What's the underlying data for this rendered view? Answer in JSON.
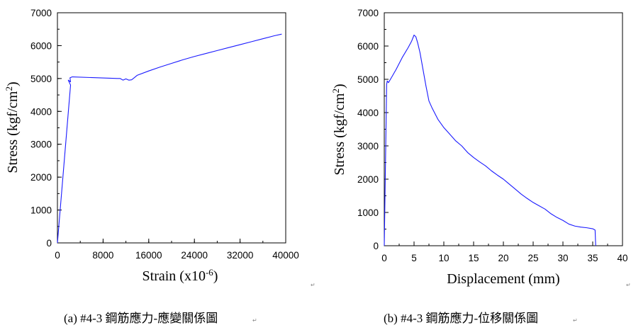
{
  "chart_data": [
    {
      "type": "line",
      "xlabel": "Strain (x10",
      "xlabel_exp": "-6",
      "xlabel_end": ")",
      "ylabel": "Stress (kgf/cm",
      "ylabel_exp": "2",
      "ylabel_end": ")",
      "xlim": [
        0,
        40000
      ],
      "ylim": [
        0,
        7000
      ],
      "xticks": [
        0,
        8000,
        16000,
        24000,
        32000,
        40000
      ],
      "yticks": [
        0,
        1000,
        2000,
        3000,
        4000,
        5000,
        6000,
        7000
      ],
      "xminor_step": 4000,
      "yminor_step": 500,
      "grid": false,
      "color": "#1a1aff",
      "caption": "(a) #4-3 鋼筋應力-應變關係圖",
      "series": [
        {
          "points": [
            [
              0,
              0
            ],
            [
              2300,
              4800
            ],
            [
              1900,
              4950
            ],
            [
              2300,
              4900
            ],
            [
              2200,
              5020
            ],
            [
              2600,
              5050
            ],
            [
              10500,
              5000
            ],
            [
              11000,
              5000
            ],
            [
              11500,
              4950
            ],
            [
              12000,
              4990
            ],
            [
              12500,
              4950
            ],
            [
              13000,
              4960
            ],
            [
              13300,
              5000
            ],
            [
              14000,
              5100
            ],
            [
              16000,
              5230
            ],
            [
              18000,
              5350
            ],
            [
              20000,
              5460
            ],
            [
              22000,
              5570
            ],
            [
              24000,
              5670
            ],
            [
              26000,
              5760
            ],
            [
              28000,
              5850
            ],
            [
              30000,
              5940
            ],
            [
              32000,
              6030
            ],
            [
              34000,
              6120
            ],
            [
              36000,
              6210
            ],
            [
              38000,
              6300
            ],
            [
              39300,
              6350
            ]
          ]
        }
      ]
    },
    {
      "type": "line",
      "xlabel": "Displacement (mm)",
      "ylabel": "Stress (kgf/cm",
      "ylabel_exp": "2",
      "ylabel_end": ")",
      "xlim": [
        0,
        40
      ],
      "ylim": [
        0,
        7000
      ],
      "xticks": [
        0,
        5,
        10,
        15,
        20,
        25,
        30,
        35,
        40
      ],
      "yticks": [
        0,
        1000,
        2000,
        3000,
        4000,
        5000,
        6000,
        7000
      ],
      "xminor_step": 2.5,
      "yminor_step": 500,
      "grid": false,
      "color": "#1a1aff",
      "caption": "(b) #4-3 鋼筋應力-位移關係圖",
      "series": [
        {
          "points": [
            [
              0,
              0
            ],
            [
              0.4,
              4850
            ],
            [
              0.5,
              4950
            ],
            [
              0.7,
              4900
            ],
            [
              1.2,
              5050
            ],
            [
              2,
              5300
            ],
            [
              3,
              5650
            ],
            [
              4,
              5950
            ],
            [
              4.6,
              6150
            ],
            [
              5,
              6330
            ],
            [
              5.3,
              6280
            ],
            [
              5.6,
              6100
            ],
            [
              6,
              5800
            ],
            [
              6.5,
              5300
            ],
            [
              7,
              4800
            ],
            [
              7.5,
              4350
            ],
            [
              8,
              4150
            ],
            [
              9,
              3800
            ],
            [
              10,
              3550
            ],
            [
              11,
              3350
            ],
            [
              12,
              3150
            ],
            [
              13,
              3000
            ],
            [
              14,
              2800
            ],
            [
              15,
              2650
            ],
            [
              16,
              2520
            ],
            [
              17,
              2400
            ],
            [
              18,
              2250
            ],
            [
              19,
              2120
            ],
            [
              20,
              2000
            ],
            [
              21,
              1850
            ],
            [
              22,
              1700
            ],
            [
              23,
              1550
            ],
            [
              24,
              1420
            ],
            [
              25,
              1300
            ],
            [
              26,
              1200
            ],
            [
              27,
              1100
            ],
            [
              28,
              960
            ],
            [
              29,
              850
            ],
            [
              30,
              760
            ],
            [
              31,
              650
            ],
            [
              32,
              590
            ],
            [
              33,
              560
            ],
            [
              34,
              540
            ],
            [
              35,
              510
            ],
            [
              35.4,
              470
            ],
            [
              35.5,
              0
            ]
          ]
        }
      ]
    }
  ]
}
